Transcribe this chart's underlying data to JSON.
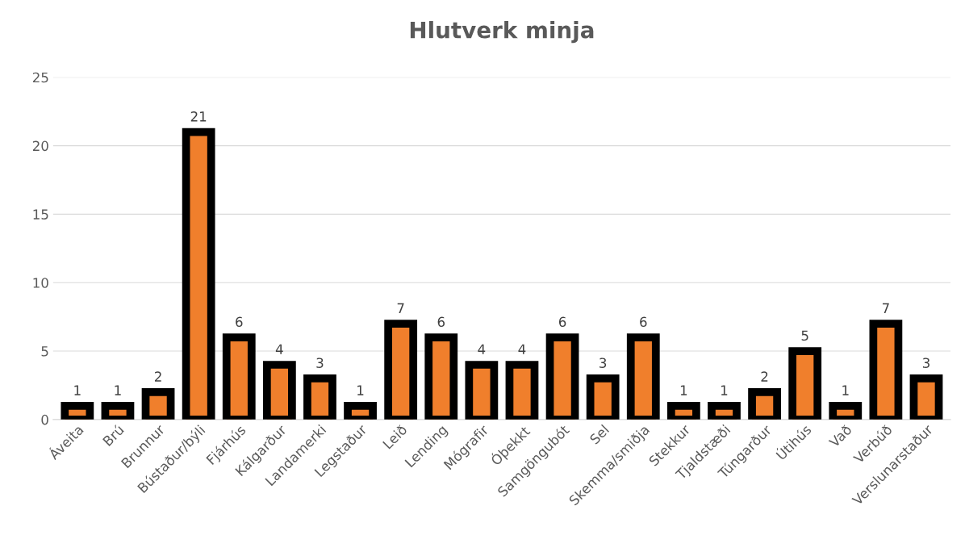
{
  "chart_data": {
    "type": "bar",
    "title": "Hlutverk minja",
    "categories": [
      "Áveita",
      "Brú",
      "Brunnur",
      "Bústaður/býli",
      "Fjárhús",
      "Kálgarður",
      "Landamerki",
      "Legstaður",
      "Leið",
      "Lending",
      "Mógrafir",
      "Óþekkt",
      "Samgöngubót",
      "Sel",
      "Skemma/smiðja",
      "Stekkur",
      "Tjaldstæði",
      "Túngarður",
      "Útihús",
      "Vað",
      "Verbúð",
      "Verslunarstaður"
    ],
    "values": [
      1,
      1,
      2,
      21,
      6,
      4,
      3,
      1,
      7,
      6,
      4,
      4,
      6,
      3,
      6,
      1,
      1,
      2,
      5,
      1,
      7,
      3
    ],
    "color": "#f07f2c",
    "ylim": [
      0,
      25
    ],
    "yticks": [
      0,
      5,
      10,
      15,
      20,
      25
    ],
    "grid": "y",
    "data_labels": true,
    "legend": false
  }
}
